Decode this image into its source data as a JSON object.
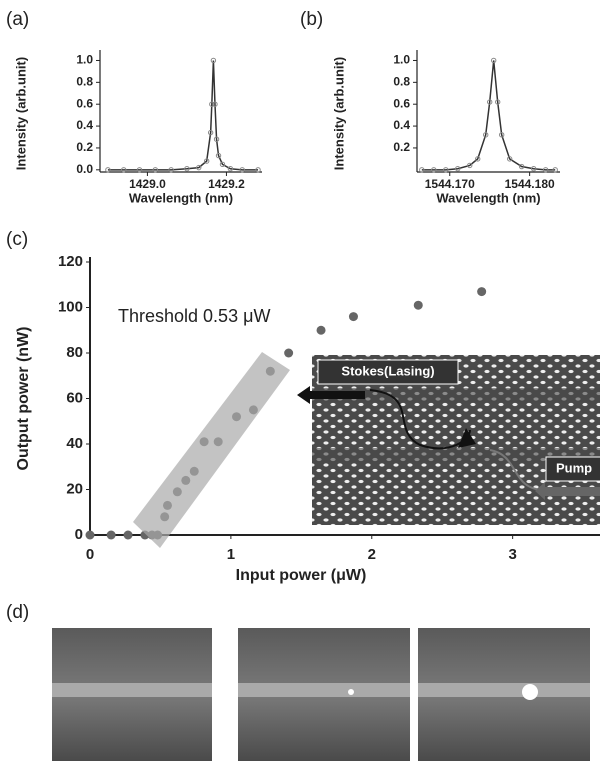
{
  "chart_data": [
    {
      "type": "line",
      "panel_label": "(a)",
      "y_label": "Intensity (arb.unit)",
      "x_label": "Wavelength (nm)",
      "x": [
        1428.9,
        1428.94,
        1428.98,
        1429.02,
        1429.06,
        1429.1,
        1429.13,
        1429.15,
        1429.16,
        1429.163,
        1429.167,
        1429.171,
        1429.175,
        1429.18,
        1429.19,
        1429.21,
        1429.24,
        1429.28
      ],
      "values": [
        0,
        0,
        0,
        0,
        0,
        0.01,
        0.02,
        0.08,
        0.34,
        0.6,
        1.0,
        0.6,
        0.28,
        0.13,
        0.05,
        0.01,
        0,
        0
      ],
      "color": "#333333",
      "marker_color": "#888888",
      "xlim": [
        1428.88,
        1429.29
      ],
      "ylim": [
        -0.02,
        1.05
      ],
      "xticks": [
        {
          "value": 1429.0,
          "label": "1429.0"
        },
        1429.2
      ],
      "yticks": [
        {
          "value": 0,
          "label": "0.0"
        },
        0.2,
        0.4,
        0.6,
        0.8,
        {
          "value": 1,
          "label": "1.0"
        }
      ]
    },
    {
      "type": "line",
      "panel_label": "(b)",
      "y_label": "Intensity (arb.unit)",
      "x_label": "Wavelength (nm)",
      "x": [
        1544.1665,
        1544.168,
        1544.1695,
        1544.171,
        1544.1725,
        1544.1735,
        1544.1745,
        1544.175,
        1544.1755,
        1544.176,
        1544.1765,
        1544.1775,
        1544.179,
        1544.1805,
        1544.182,
        1544.1832
      ],
      "values": [
        0,
        0,
        0,
        0.01,
        0.04,
        0.1,
        0.32,
        0.62,
        1.0,
        0.62,
        0.32,
        0.1,
        0.03,
        0.01,
        0,
        0
      ],
      "color": "#333333",
      "marker_color": "#888888",
      "xlim": [
        1544.1659,
        1544.1838
      ],
      "ylim": [
        -0.02,
        1.05
      ],
      "xticks": [
        {
          "value": 1544.17,
          "label": "1544.170"
        },
        {
          "value": 1544.18,
          "label": "1544.180"
        }
      ],
      "yticks": [
        0.2,
        0.4,
        0.6,
        0.8,
        {
          "value": 1,
          "label": "1.0"
        }
      ]
    },
    {
      "type": "scatter",
      "panel_label": "(c)",
      "y_label": "Output power (nW)",
      "x_label": "Input power (μW)",
      "x": [
        0,
        0.15,
        0.27,
        0.39,
        0.44,
        0.48,
        0.53,
        0.55,
        0.62,
        0.68,
        0.74,
        0.81,
        0.91,
        1.04,
        1.16,
        1.28,
        1.41,
        1.64,
        1.87,
        2.33,
        2.78
      ],
      "values": [
        0,
        0,
        0,
        0,
        0,
        0,
        8,
        13,
        19,
        24,
        28,
        41,
        41,
        52,
        55,
        72,
        80,
        90,
        96,
        101,
        107
      ],
      "color": "#666666",
      "xlim": [
        0,
        3.62
      ],
      "ylim": [
        0,
        120
      ],
      "xticks": [
        0,
        1,
        2,
        3
      ],
      "yticks": [
        0,
        20,
        40,
        60,
        80,
        100,
        120
      ],
      "annotations": [
        "Threshold 0.53 μW",
        "Stokes(Lasing)",
        "Pump"
      ]
    }
  ],
  "panel_d": {
    "label": "(d)"
  }
}
